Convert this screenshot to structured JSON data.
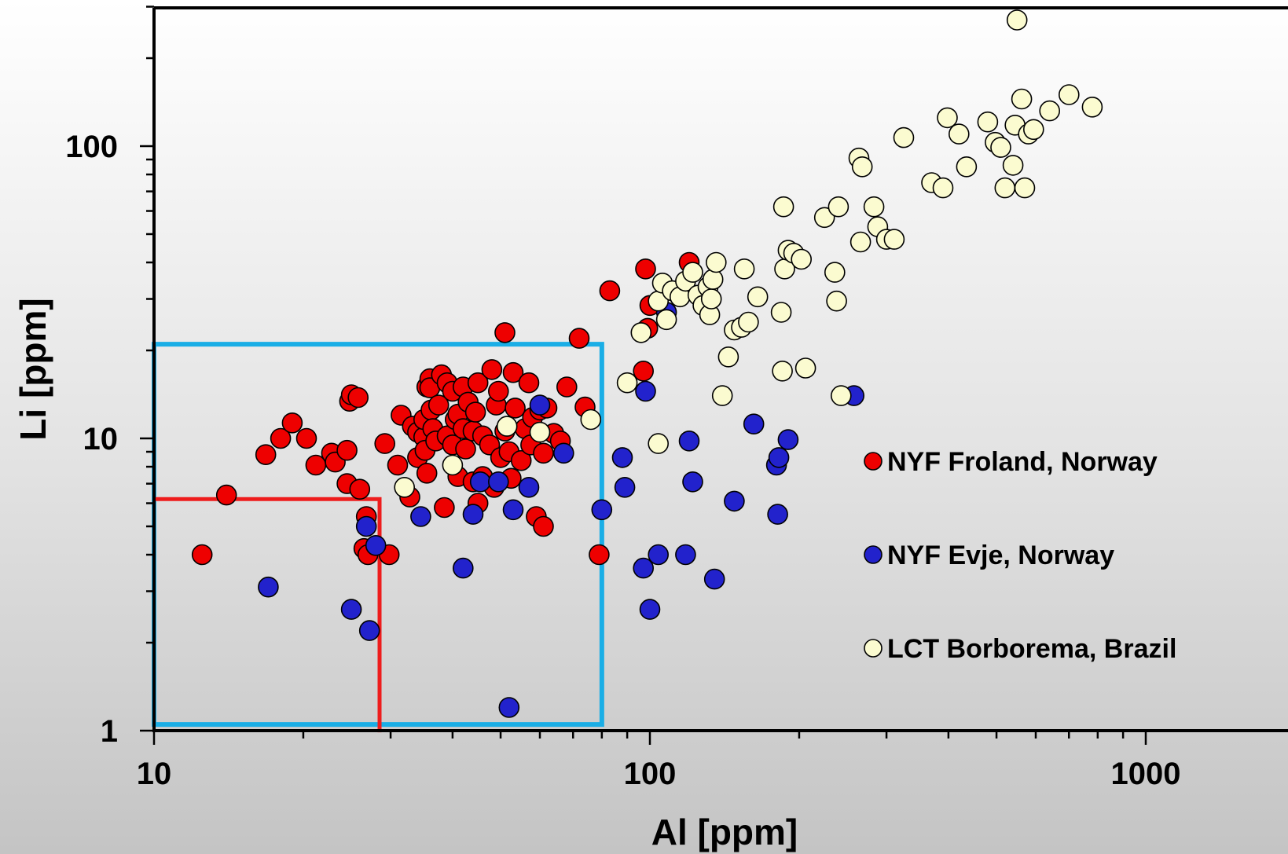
{
  "chart_data": {
    "type": "scatter",
    "xlabel": "Al [ppm]",
    "ylabel": "Li [ppm]",
    "xscale": "log",
    "yscale": "log",
    "xlim": [
      10,
      2800
    ],
    "ylim": [
      1,
      300
    ],
    "x_tick_labels": [
      "10",
      "100",
      "1000"
    ],
    "y_tick_labels": [
      "1",
      "10",
      "100"
    ],
    "grid": false,
    "legend_position": "right-middle",
    "boxes": [
      {
        "color": "#1aaee6",
        "x": [
          10,
          80
        ],
        "y": [
          1.05,
          21
        ]
      },
      {
        "color": "#ee1c1c",
        "x": [
          10,
          28.5
        ],
        "y": [
          1.05,
          6.2
        ]
      }
    ],
    "series": [
      {
        "name": "NYF Froland, Norway",
        "color": "#ee0000",
        "points": [
          [
            12.5,
            4.0
          ],
          [
            14,
            6.4
          ],
          [
            16.8,
            8.8
          ],
          [
            18,
            10
          ],
          [
            19,
            11.3
          ],
          [
            20.3,
            10
          ],
          [
            21.2,
            8.1
          ],
          [
            22.8,
            8.9
          ],
          [
            23.2,
            8.3
          ],
          [
            24.5,
            9.1
          ],
          [
            24.5,
            7.0
          ],
          [
            24.8,
            13.4
          ],
          [
            25,
            14.1
          ],
          [
            25.8,
            13.8
          ],
          [
            26,
            6.7
          ],
          [
            26.8,
            5.4
          ],
          [
            26.5,
            4.2
          ],
          [
            27,
            4.0
          ],
          [
            29.2,
            9.6
          ],
          [
            29.8,
            4.0
          ],
          [
            31,
            8.1
          ],
          [
            31.5,
            12
          ],
          [
            32.8,
            6.3
          ],
          [
            33.2,
            11
          ],
          [
            34,
            8.6
          ],
          [
            34,
            10.5
          ],
          [
            35,
            10.1
          ],
          [
            35,
            11.6
          ],
          [
            35.2,
            9.1
          ],
          [
            35.5,
            15
          ],
          [
            35.5,
            7.6
          ],
          [
            36,
            16
          ],
          [
            36,
            14.9
          ],
          [
            36.2,
            12.5
          ],
          [
            36.5,
            10.8
          ],
          [
            37,
            9.8
          ],
          [
            37.5,
            13
          ],
          [
            38,
            16.5
          ],
          [
            38.5,
            5.8
          ],
          [
            39,
            10.2
          ],
          [
            39,
            15.5
          ],
          [
            40,
            9.5
          ],
          [
            40,
            14.5
          ],
          [
            40.5,
            11.6
          ],
          [
            41,
            12.1
          ],
          [
            41,
            7.4
          ],
          [
            42,
            10.8
          ],
          [
            42,
            15
          ],
          [
            42.5,
            9.2
          ],
          [
            43,
            13.3
          ],
          [
            44,
            7.1
          ],
          [
            44,
            10.6
          ],
          [
            44.5,
            12.3
          ],
          [
            45,
            6.0
          ],
          [
            45,
            15.5
          ],
          [
            46,
            7.4
          ],
          [
            46,
            10.2
          ],
          [
            47.5,
            9.5
          ],
          [
            48,
            17.2
          ],
          [
            48.5,
            6.8
          ],
          [
            49,
            13
          ],
          [
            49.5,
            14.5
          ],
          [
            50,
            8.6
          ],
          [
            51,
            10.6
          ],
          [
            51,
            23
          ],
          [
            52,
            9
          ],
          [
            52.5,
            7.3
          ],
          [
            53,
            16.8
          ],
          [
            53.5,
            12.7
          ],
          [
            55,
            8.4
          ],
          [
            56,
            10.8
          ],
          [
            57,
            15.5
          ],
          [
            57.5,
            9.5
          ],
          [
            58,
            11.8
          ],
          [
            59,
            5.4
          ],
          [
            60,
            12.5
          ],
          [
            61,
            5.0
          ],
          [
            61,
            8.9
          ],
          [
            62,
            12.7
          ],
          [
            64,
            10.4
          ],
          [
            66,
            9.8
          ],
          [
            68,
            15
          ],
          [
            72,
            22
          ],
          [
            74,
            12.8
          ],
          [
            79,
            4.0
          ],
          [
            83,
            32
          ],
          [
            97,
            17
          ],
          [
            98,
            38
          ],
          [
            99,
            23.8
          ],
          [
            100,
            28.5
          ],
          [
            120,
            40
          ]
        ]
      },
      {
        "name": "NYF Evje, Norway",
        "color": "#2222cc",
        "points": [
          [
            17,
            3.1
          ],
          [
            25,
            2.6
          ],
          [
            26.8,
            5.0
          ],
          [
            27.2,
            2.2
          ],
          [
            28,
            4.3
          ],
          [
            34.5,
            5.4
          ],
          [
            42,
            3.6
          ],
          [
            44,
            5.5
          ],
          [
            45.5,
            7.1
          ],
          [
            49.5,
            7.1
          ],
          [
            52,
            1.2
          ],
          [
            53,
            5.7
          ],
          [
            57,
            6.8
          ],
          [
            60,
            13
          ],
          [
            67,
            8.9
          ],
          [
            80,
            5.7
          ],
          [
            88,
            8.6
          ],
          [
            89,
            6.8
          ],
          [
            97,
            3.6
          ],
          [
            98,
            14.5
          ],
          [
            100,
            2.6
          ],
          [
            104,
            4.0
          ],
          [
            108,
            27
          ],
          [
            118,
            4.0
          ],
          [
            120,
            9.8
          ],
          [
            122,
            7.1
          ],
          [
            135,
            3.3
          ],
          [
            148,
            6.1
          ],
          [
            162,
            11.2
          ],
          [
            180,
            8.1
          ],
          [
            181,
            5.5
          ],
          [
            182,
            8.6
          ],
          [
            190,
            9.9
          ],
          [
            258,
            14
          ]
        ]
      },
      {
        "name": "LCT Borborema, Brazil",
        "color": "#fbfbd0",
        "points": [
          [
            32,
            6.8
          ],
          [
            40,
            8.1
          ],
          [
            51.5,
            11
          ],
          [
            60,
            10.5
          ],
          [
            76,
            11.6
          ],
          [
            90,
            15.5
          ],
          [
            96,
            23
          ],
          [
            104,
            9.6
          ],
          [
            104,
            29.5
          ],
          [
            106,
            34
          ],
          [
            108,
            25.5
          ],
          [
            111,
            32
          ],
          [
            115,
            30.5
          ],
          [
            118,
            34.5
          ],
          [
            122,
            37
          ],
          [
            125,
            30.9
          ],
          [
            128,
            28.5
          ],
          [
            131,
            33
          ],
          [
            132,
            26.5
          ],
          [
            133,
            30
          ],
          [
            134,
            35
          ],
          [
            136,
            40
          ],
          [
            140,
            14
          ],
          [
            144,
            19
          ],
          [
            148,
            23.5
          ],
          [
            153,
            24
          ],
          [
            155,
            38
          ],
          [
            158,
            25
          ],
          [
            165,
            30.5
          ],
          [
            184,
            27
          ],
          [
            185,
            17
          ],
          [
            186,
            62
          ],
          [
            187,
            38
          ],
          [
            190,
            44
          ],
          [
            195,
            43
          ],
          [
            202,
            41
          ],
          [
            206,
            17.4
          ],
          [
            225,
            57
          ],
          [
            236,
            37
          ],
          [
            238,
            29.5
          ],
          [
            240,
            62
          ],
          [
            243,
            14
          ],
          [
            264,
            91
          ],
          [
            266,
            47
          ],
          [
            268,
            85
          ],
          [
            283,
            62
          ],
          [
            288,
            53
          ],
          [
            300,
            48
          ],
          [
            311,
            48
          ],
          [
            325,
            107
          ],
          [
            370,
            75
          ],
          [
            390,
            72
          ],
          [
            398,
            125
          ],
          [
            420,
            110
          ],
          [
            435,
            85
          ],
          [
            480,
            121
          ],
          [
            497,
            103
          ],
          [
            510,
            99
          ],
          [
            520,
            72
          ],
          [
            540,
            86
          ],
          [
            545,
            118
          ],
          [
            550,
            270
          ],
          [
            562,
            145
          ],
          [
            570,
            72
          ],
          [
            580,
            110
          ],
          [
            594,
            114
          ],
          [
            640,
            132
          ],
          [
            700,
            150
          ],
          [
            780,
            136
          ]
        ]
      }
    ]
  }
}
